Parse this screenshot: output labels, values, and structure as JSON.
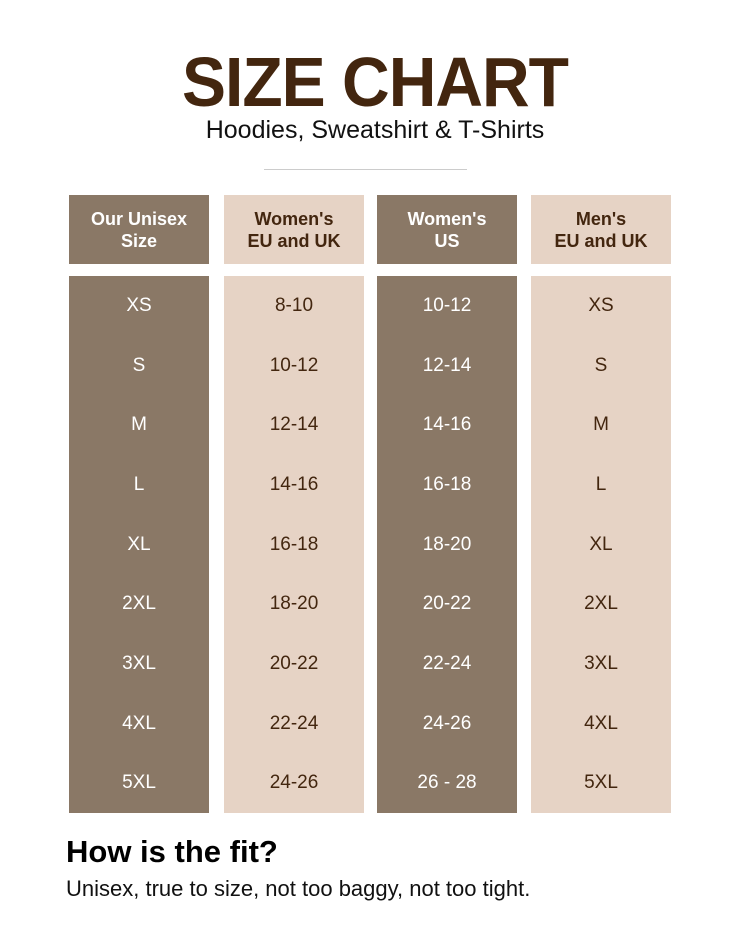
{
  "title": "SIZE CHART",
  "subtitle": "Hoodies, Sweatshirt & T-Shirts",
  "colors": {
    "dark": "#8a7866",
    "light": "#e6d3c5",
    "title": "#43260f"
  },
  "columns": [
    {
      "header": "Our Unisex\nSize",
      "values": [
        "XS",
        "S",
        "M",
        "L",
        "XL",
        "2XL",
        "3XL",
        "4XL",
        "5XL"
      ]
    },
    {
      "header": "Women's\nEU and UK",
      "values": [
        "8-10",
        "10-12",
        "12-14",
        "14-16",
        "16-18",
        "18-20",
        "20-22",
        "22-24",
        "24-26"
      ]
    },
    {
      "header": "Women's\nUS",
      "values": [
        "10-12",
        "12-14",
        "14-16",
        "16-18",
        "18-20",
        "20-22",
        "22-24",
        "24-26",
        "26 - 28"
      ]
    },
    {
      "header": "Men's\nEU and UK",
      "values": [
        "XS",
        "S",
        "M",
        "L",
        "XL",
        "2XL",
        "3XL",
        "4XL",
        "5XL"
      ]
    }
  ],
  "fit": {
    "heading": "How is the fit?",
    "text": "Unisex, true to size, not too baggy, not too tight."
  }
}
